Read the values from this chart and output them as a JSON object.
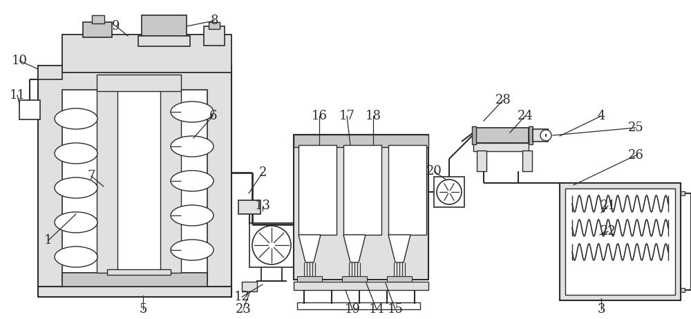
{
  "bg_color": "#ffffff",
  "lc": "#2a2a2a",
  "gray1": "#c8c8c8",
  "gray2": "#e0e0e0",
  "gray3": "#b0b0b0",
  "figsize": [
    10.0,
    4.62
  ],
  "dpi": 100,
  "label_fs": 13
}
